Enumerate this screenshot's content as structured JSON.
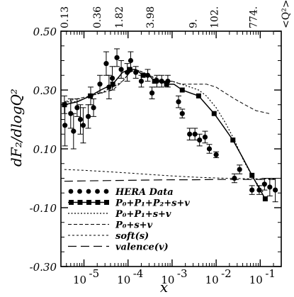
{
  "chart_data": {
    "type": "scatter",
    "xlabel": "x",
    "ylabel": "dF₂/dlogQ²",
    "xscale": "log",
    "xlim": [
      3e-06,
      0.3
    ],
    "ylim": [
      -0.3,
      0.5
    ],
    "y_ticks": [
      {
        "value": 0.5,
        "label": "0.50"
      },
      {
        "value": 0.3,
        "label": "0.30"
      },
      {
        "value": 0.1,
        "label": "0.10"
      },
      {
        "value": -0.1,
        "label": "-0.10"
      },
      {
        "value": -0.3,
        "label": "-0.30"
      }
    ],
    "x_ticks": [
      {
        "value": 1e-05,
        "base": "10",
        "exp": "-5"
      },
      {
        "value": 0.0001,
        "base": "10",
        "exp": "-4"
      },
      {
        "value": 0.001,
        "base": "10",
        "exp": "-3"
      },
      {
        "value": 0.01,
        "base": "10",
        "exp": "-2"
      },
      {
        "value": 0.1,
        "base": "10",
        "exp": "-1"
      }
    ],
    "top_axis": {
      "title": "<Q²>",
      "labels": [
        {
          "x": 3.6e-06,
          "label": "0.13"
        },
        {
          "x": 2e-05,
          "label": "0.36"
        },
        {
          "x": 6.2e-05,
          "label": "1.82"
        },
        {
          "x": 0.00032,
          "label": "3.98"
        },
        {
          "x": 0.003,
          "label": "9."
        },
        {
          "x": 0.009,
          "label": "102."
        },
        {
          "x": 0.07,
          "label": "774."
        }
      ]
    },
    "series": [
      {
        "name": "HERA Data",
        "kind": "points",
        "points": [
          {
            "x": 3.6e-06,
            "y": 0.25,
            "err": 0.03
          },
          {
            "x": 3.7e-06,
            "y": 0.18,
            "err": 0.07
          },
          {
            "x": 5e-06,
            "y": 0.22,
            "err": 0.05
          },
          {
            "x": 5.8e-06,
            "y": 0.16,
            "err": 0.06
          },
          {
            "x": 7e-06,
            "y": 0.24,
            "err": 0.03
          },
          {
            "x": 8.3e-06,
            "y": 0.2,
            "err": 0.05
          },
          {
            "x": 9.6e-06,
            "y": 0.18,
            "err": 0.06
          },
          {
            "x": 1.25e-05,
            "y": 0.21,
            "err": 0.04
          },
          {
            "x": 1.42e-05,
            "y": 0.28,
            "err": 0.03
          },
          {
            "x": 1.65e-05,
            "y": 0.24,
            "err": 0.03
          },
          {
            "x": 2.3e-05,
            "y": 0.32,
            "err": 0.03
          },
          {
            "x": 3.2e-05,
            "y": 0.39,
            "err": 0.04
          },
          {
            "x": 3.7e-05,
            "y": 0.31,
            "err": 0.04
          },
          {
            "x": 4.4e-05,
            "y": 0.34,
            "err": 0.04
          },
          {
            "x": 5.6e-05,
            "y": 0.41,
            "err": 0.03
          },
          {
            "x": 7e-05,
            "y": 0.37,
            "err": 0.03
          },
          {
            "x": 9.6e-05,
            "y": 0.36,
            "err": 0.03
          },
          {
            "x": 0.000115,
            "y": 0.4,
            "err": 0.03
          },
          {
            "x": 0.00015,
            "y": 0.36,
            "err": 0.02
          },
          {
            "x": 0.0002,
            "y": 0.33,
            "err": 0.02
          },
          {
            "x": 0.00028,
            "y": 0.35,
            "err": 0.02
          },
          {
            "x": 0.00035,
            "y": 0.29,
            "err": 0.02
          },
          {
            "x": 0.00045,
            "y": 0.33,
            "err": 0.02
          },
          {
            "x": 0.00058,
            "y": 0.33,
            "err": 0.02
          },
          {
            "x": 0.0008,
            "y": 0.33,
            "err": 0.02
          },
          {
            "x": 0.0014,
            "y": 0.26,
            "err": 0.02
          },
          {
            "x": 0.0017,
            "y": 0.22,
            "err": 0.015
          },
          {
            "x": 0.0025,
            "y": 0.15,
            "err": 0.02
          },
          {
            "x": 0.0033,
            "y": 0.15,
            "err": 0.02
          },
          {
            "x": 0.0042,
            "y": 0.13,
            "err": 0.02
          },
          {
            "x": 0.0056,
            "y": 0.14,
            "err": 0.02
          },
          {
            "x": 0.007,
            "y": 0.1,
            "err": 0.015
          },
          {
            "x": 0.01,
            "y": 0.08,
            "err": 0.01
          },
          {
            "x": 0.026,
            "y": 0.0,
            "err": 0.015
          },
          {
            "x": 0.034,
            "y": 0.03,
            "err": 0.015
          },
          {
            "x": 0.065,
            "y": -0.04,
            "err": 0.015
          },
          {
            "x": 0.095,
            "y": -0.04,
            "err": 0.015
          },
          {
            "x": 0.125,
            "y": -0.02,
            "err": 0.02
          },
          {
            "x": 0.165,
            "y": -0.03,
            "err": 0.03
          },
          {
            "x": 0.22,
            "y": -0.04,
            "err": 0.04
          }
        ]
      },
      {
        "name": "P₀+P₁+P₂+s+v",
        "kind": "line-squares",
        "x": [
          3.6e-06,
          7e-06,
          1.4e-05,
          2.4e-05,
          4.5e-05,
          7.5e-05,
          0.00011,
          0.00015,
          0.00022,
          0.0003,
          0.0004,
          0.00055,
          0.00075,
          0.0011,
          0.0017,
          0.0026,
          0.004,
          0.006,
          0.009,
          0.014,
          0.024,
          0.04,
          0.065,
          0.1,
          0.13
        ],
        "y": [
          0.25,
          0.26,
          0.28,
          0.3,
          0.32,
          0.36,
          0.37,
          0.37,
          0.35,
          0.35,
          0.33,
          0.33,
          0.32,
          0.32,
          0.3,
          0.29,
          0.28,
          0.25,
          0.22,
          0.18,
          0.13,
          0.07,
          0.01,
          -0.04,
          -0.07
        ]
      },
      {
        "name": "P₀+P₁+s+v",
        "kind": "dotted",
        "x": [
          3.6e-06,
          7e-06,
          1.4e-05,
          2.4e-05,
          4.5e-05,
          7.5e-05,
          0.00011,
          0.00015,
          0.00022,
          0.0003,
          0.0004,
          0.0006,
          0.001,
          0.0016,
          0.0026,
          0.004,
          0.006,
          0.01,
          0.016,
          0.026,
          0.042,
          0.07,
          0.12
        ],
        "y": [
          0.26,
          0.26,
          0.28,
          0.29,
          0.31,
          0.33,
          0.36,
          0.37,
          0.36,
          0.35,
          0.34,
          0.33,
          0.33,
          0.32,
          0.31,
          0.3,
          0.28,
          0.24,
          0.19,
          0.13,
          0.06,
          0.0,
          -0.05
        ]
      },
      {
        "name": "P₀+s+v",
        "kind": "short-dash",
        "x": [
          3.6e-06,
          7e-06,
          1.4e-05,
          2.4e-05,
          4.5e-05,
          7.5e-05,
          0.00011,
          0.00015,
          0.00022,
          0.0003,
          0.00045,
          0.0007,
          0.001,
          0.0016,
          0.0026,
          0.004,
          0.006,
          0.01,
          0.016,
          0.026,
          0.045,
          0.08,
          0.16
        ],
        "y": [
          0.26,
          0.27,
          0.28,
          0.29,
          0.3,
          0.33,
          0.36,
          0.37,
          0.36,
          0.35,
          0.34,
          0.33,
          0.33,
          0.32,
          0.32,
          0.32,
          0.32,
          0.31,
          0.29,
          0.27,
          0.25,
          0.23,
          0.22
        ]
      },
      {
        "name": "soft(s)",
        "kind": "dash-fine",
        "x": [
          3.6e-06,
          1e-05,
          3e-05,
          0.0001,
          0.0003,
          0.001,
          0.003,
          0.01,
          0.03,
          0.1,
          0.22
        ],
        "y": [
          0.03,
          0.027,
          0.023,
          0.018,
          0.013,
          0.008,
          0.004,
          0.001,
          -0.001,
          -0.002,
          -0.002
        ]
      },
      {
        "name": "valence(v)",
        "kind": "long-dash",
        "x": [
          3.6e-06,
          1e-05,
          3e-05,
          0.0001,
          0.0003,
          0.001,
          0.003,
          0.01,
          0.03,
          0.1,
          0.22
        ],
        "y": [
          -0.01,
          -0.009,
          -0.008,
          -0.007,
          -0.006,
          -0.005,
          -0.005,
          -0.004,
          -0.004,
          -0.004,
          -0.004
        ]
      }
    ]
  }
}
